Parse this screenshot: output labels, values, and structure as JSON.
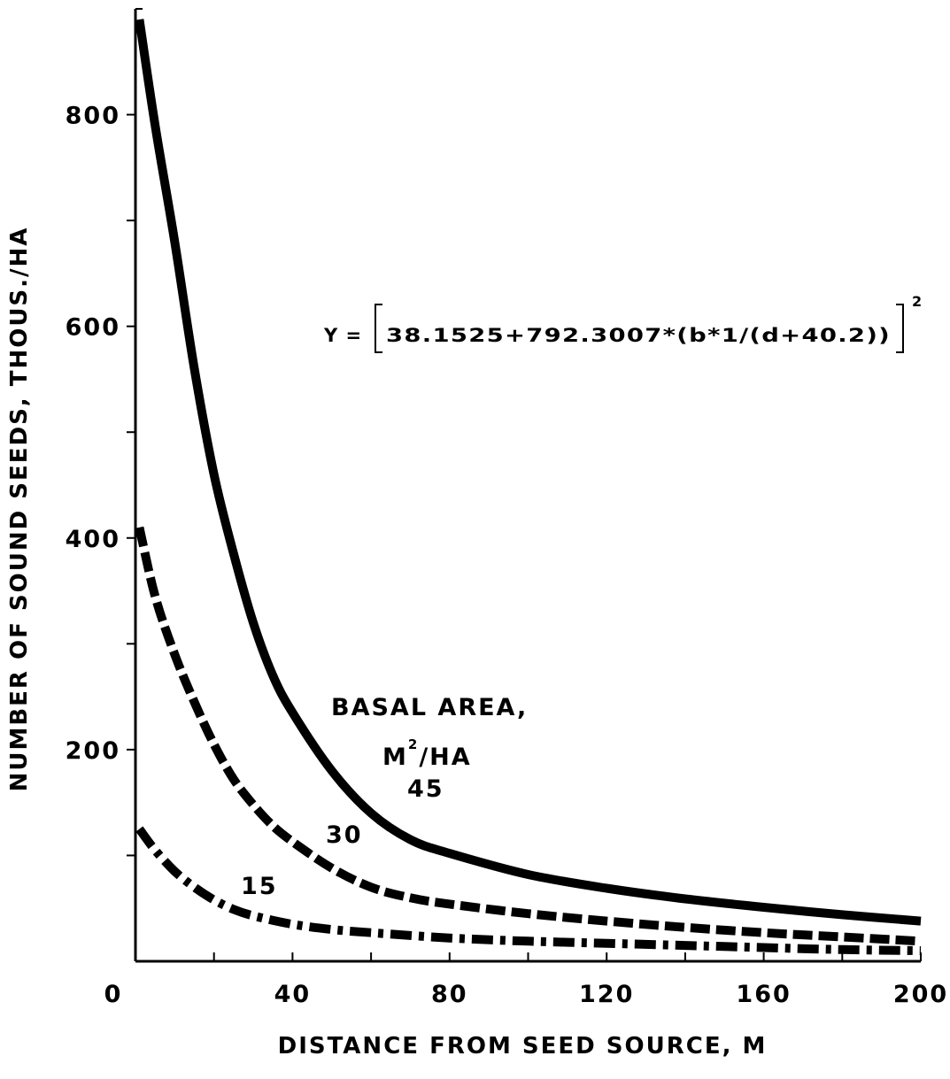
{
  "chart_data": {
    "type": "line",
    "title": "",
    "xlabel": "DISTANCE FROM SEED SOURCE, M",
    "ylabel": "NUMBER OF SOUND SEEDS, THOUS./HA",
    "xlim": [
      0,
      200
    ],
    "ylim": [
      0,
      900
    ],
    "x_ticks_labeled": [
      0,
      40,
      80,
      120,
      160,
      200
    ],
    "x_ticks_minor": [
      20,
      60,
      100,
      140,
      180
    ],
    "y_ticks_labeled": [
      200,
      400,
      600,
      800
    ],
    "y_ticks_minor": [
      100,
      300,
      500,
      700
    ],
    "grid": false,
    "equation": {
      "prefix": "Y =",
      "body": "38.1525+792.3007*(b*1/(d+40.2))",
      "exponent": "2"
    },
    "legend_title_line1": "BASAL AREA,",
    "legend_title_line2_main": "M",
    "legend_title_line2_sup": "2",
    "legend_title_line2_rest": "/HA",
    "series": [
      {
        "name": "45",
        "style": "solid",
        "x": [
          1,
          5,
          10,
          15,
          20,
          25,
          30,
          35,
          40,
          50,
          60,
          70,
          80,
          100,
          120,
          140,
          160,
          180,
          200
        ],
        "y": [
          890,
          790,
          680,
          560,
          460,
          385,
          320,
          270,
          235,
          180,
          140,
          115,
          102,
          82,
          69,
          59,
          51,
          44,
          38
        ]
      },
      {
        "name": "30",
        "style": "dashed",
        "x": [
          1,
          5,
          10,
          15,
          20,
          25,
          30,
          35,
          40,
          50,
          60,
          70,
          80,
          100,
          120,
          140,
          160,
          180,
          200
        ],
        "y": [
          410,
          345,
          290,
          245,
          205,
          172,
          148,
          128,
          113,
          88,
          70,
          60,
          54,
          45,
          38,
          32,
          27,
          23,
          19
        ]
      },
      {
        "name": "15",
        "style": "dashdot",
        "x": [
          1,
          5,
          10,
          15,
          20,
          25,
          30,
          40,
          50,
          60,
          80,
          100,
          120,
          140,
          160,
          180,
          200
        ],
        "y": [
          125,
          105,
          85,
          70,
          58,
          49,
          43,
          35,
          30,
          27,
          22,
          19,
          17,
          15,
          13,
          11,
          10
        ]
      }
    ]
  }
}
